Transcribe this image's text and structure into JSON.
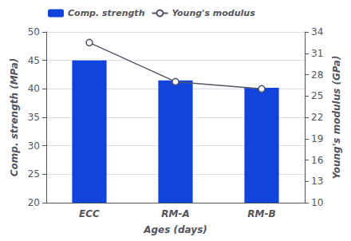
{
  "chart_data": {
    "type": "bar",
    "xlabel": "Ages (days)",
    "ylabel": "Comp. strength (MPa)",
    "y2label": "Young's modulus (GPa)",
    "categories": [
      "ECC",
      "RM-A",
      "RM-B"
    ],
    "series": [
      {
        "name": "Comp. strength",
        "type": "bar",
        "color": "#1144DD",
        "values": [
          45.0,
          41.5,
          40.2
        ]
      },
      {
        "name": "Young's modulus",
        "type": "line",
        "axis": "y2",
        "color": "#555566",
        "marker": "circle",
        "values": [
          32.5,
          27.0,
          26.0
        ]
      }
    ],
    "ylim": [
      20,
      50
    ],
    "yticks": [
      20,
      25,
      30,
      35,
      40,
      45,
      50
    ],
    "y2lim": [
      10,
      34
    ],
    "y2ticks": [
      10,
      13,
      16,
      19,
      22,
      25,
      28,
      31,
      34
    ],
    "grid": true,
    "legend": "upper left"
  }
}
